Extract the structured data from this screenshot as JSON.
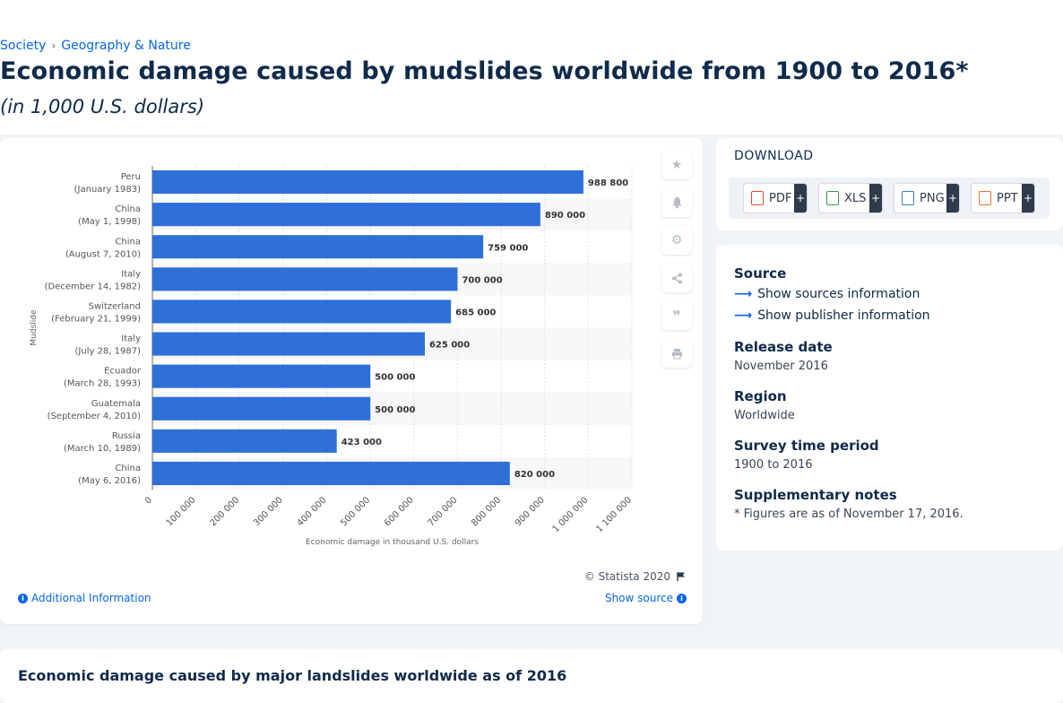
{
  "breadcrumb": {
    "items": [
      "Society",
      "Geography & Nature"
    ],
    "separator": "›"
  },
  "page": {
    "title": "Economic damage caused by mudslides worldwide from 1900 to 2016*",
    "subtitle": "(in 1,000 U.S. dollars)"
  },
  "chart_data": {
    "type": "bar",
    "orientation": "horizontal",
    "categories": [
      [
        "Peru",
        "(January 1983)"
      ],
      [
        "China",
        "(May 1, 1998)"
      ],
      [
        "China",
        "(August 7, 2010)"
      ],
      [
        "Italy",
        "(December 14, 1982)"
      ],
      [
        "Switzerland",
        "(February 21, 1999)"
      ],
      [
        "Italy",
        "(July 28, 1987)"
      ],
      [
        "Ecuador",
        "(March 28, 1993)"
      ],
      [
        "Guatemala",
        "(September 4, 2010)"
      ],
      [
        "Russia",
        "(March 10, 1989)"
      ],
      [
        "China",
        "(May 6, 2016)"
      ]
    ],
    "values": [
      988800,
      890000,
      759000,
      700000,
      685000,
      625000,
      500000,
      500000,
      423000,
      820000
    ],
    "value_labels": [
      "988 800",
      "890 000",
      "759 000",
      "700 000",
      "685 000",
      "625 000",
      "500 000",
      "500 000",
      "423 000",
      "820 000"
    ],
    "xlim": [
      0,
      1100000
    ],
    "x_ticks": [
      0,
      100000,
      200000,
      300000,
      400000,
      500000,
      600000,
      700000,
      800000,
      900000,
      1000000,
      1100000
    ],
    "x_tick_labels": [
      "0",
      "100 000",
      "200 000",
      "300 000",
      "400 000",
      "500 000",
      "600 000",
      "700 000",
      "800 000",
      "900 000",
      "1 000 000",
      "1 100 000"
    ],
    "xlabel": "Economic damage in thousand U.S. dollars",
    "ylabel": "Mudslide",
    "grid": true,
    "bar_color": "#2f6fd8"
  },
  "chart_footer": {
    "copyright": "© Statista 2020",
    "additional_info": "Additional Information",
    "show_source": "Show source"
  },
  "side_tools": [
    "star-icon",
    "bell-icon",
    "gear-icon",
    "share-icon",
    "quote-icon",
    "print-icon"
  ],
  "download": {
    "title": "DOWNLOAD",
    "buttons": [
      {
        "label": "PDF",
        "color": "#e24a3b"
      },
      {
        "label": "XLS",
        "color": "#3a9d4a"
      },
      {
        "label": "PNG",
        "color": "#3d7bd8"
      },
      {
        "label": "PPT",
        "color": "#e8762b"
      }
    ],
    "plus": "+"
  },
  "info": {
    "source_label": "Source",
    "show_sources": "Show sources information",
    "show_publisher": "Show publisher information",
    "release_label": "Release date",
    "release_value": "November 2016",
    "region_label": "Region",
    "region_value": "Worldwide",
    "survey_label": "Survey time period",
    "survey_value": "1900 to 2016",
    "notes_label": "Supplementary notes",
    "notes_value": "* Figures are as of November 17, 2016."
  },
  "related": {
    "title": "Economic damage caused by major landslides worldwide as of 2016"
  }
}
